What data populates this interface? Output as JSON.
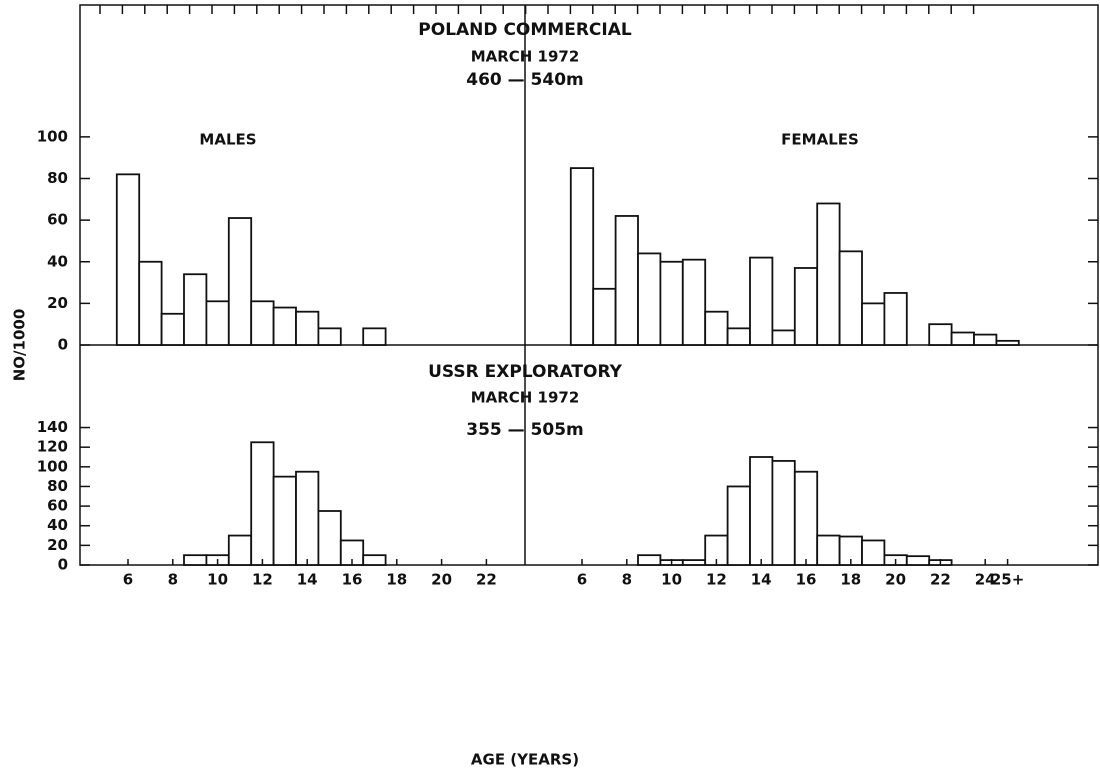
{
  "chart_data": [
    {
      "type": "bar",
      "title": "POLAND COMMERCIAL",
      "subtitle": "MARCH 1972",
      "depth": "460 — 540m",
      "male_label": "MALES",
      "female_label": "FEMALES",
      "male_values": [
        82,
        40,
        15,
        34,
        21,
        61,
        21,
        18,
        16,
        8,
        null,
        8,
        null,
        null,
        null,
        null,
        null
      ],
      "female_values": [
        85,
        27,
        62,
        44,
        40,
        41,
        16,
        8,
        42,
        7,
        37,
        68,
        45,
        20,
        25,
        null,
        10,
        6,
        5,
        2
      ],
      "ylim": [
        0,
        160
      ],
      "yticks": [
        0,
        20,
        40,
        60,
        80,
        100
      ]
    },
    {
      "type": "bar",
      "title": "USSR EXPLORATORY",
      "subtitle": "MARCH 1972",
      "depth": "355 — 505m",
      "male_values": [
        null,
        null,
        null,
        10,
        10,
        30,
        125,
        90,
        95,
        55,
        25,
        10,
        null,
        null,
        null,
        null,
        null
      ],
      "female_values": [
        null,
        null,
        null,
        10,
        5,
        5,
        30,
        80,
        110,
        106,
        95,
        30,
        29,
        25,
        10,
        9,
        5,
        null,
        null,
        null
      ],
      "ylim": [
        0,
        220
      ],
      "yticks": [
        0,
        20,
        40,
        60,
        80,
        100,
        120,
        140
      ]
    }
  ],
  "ylabel": "NO/1000",
  "xlabel": "AGE (YEARS)",
  "male_categories": [
    "6",
    null,
    "8",
    null,
    "10",
    null,
    "12",
    null,
    "14",
    null,
    "16",
    null,
    "18",
    null,
    "20",
    null,
    "22"
  ],
  "female_categories": [
    "6",
    null,
    "8",
    null,
    "10",
    null,
    "12",
    null,
    "14",
    null,
    "16",
    null,
    "18",
    null,
    "20",
    null,
    "22",
    null,
    "24",
    "25+"
  ]
}
